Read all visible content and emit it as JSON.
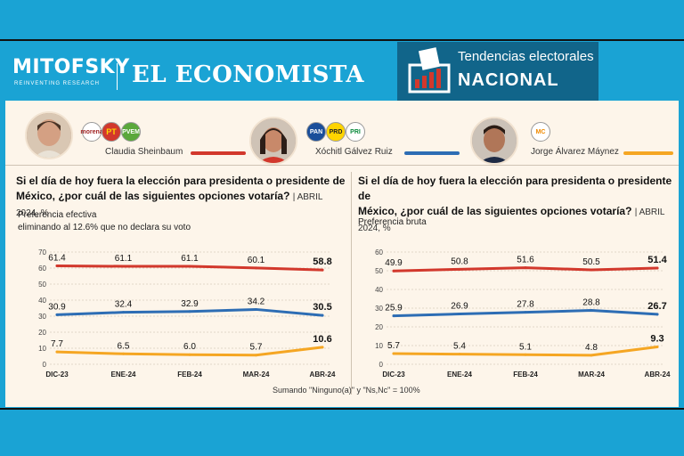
{
  "header": {
    "mitofsky": "MITOFSKY",
    "mitofsky_sub": "REINVENTING RESEARCH",
    "economista": "EL ECONOMISTA",
    "tend_line1": "Tendencias electorales",
    "tend_line2": "NACIONAL"
  },
  "candidates": [
    {
      "name": "Claudia Sheinbaum",
      "parties": [
        "morena",
        "PT",
        "PVEM"
      ],
      "color": "#d2382c"
    },
    {
      "name": "Xóchitl Gálvez Ruiz",
      "parties": [
        "PAN",
        "PRD",
        "PRI"
      ],
      "color": "#2d6db4"
    },
    {
      "name": "Jorge Álvarez Máynez",
      "parties": [
        "MC"
      ],
      "color": "#f5a623"
    }
  ],
  "panels": {
    "left": {
      "question_a": "Si el día de hoy fuera la elección para presidenta o presidente de",
      "question_b": "México, ¿por cuál de las siguientes opciones votaría?",
      "tag": "| ABRIL 2024, %",
      "sub1": "Preferencia efectiva",
      "sub2": "eliminando al 12.6% que no declara su voto"
    },
    "right": {
      "question_a": "Si el día de hoy fuera la elección para presidenta o presidente de",
      "question_b": "México, ¿por cuál de las siguientes opciones votaría?",
      "tag": "| ABRIL 2024, %",
      "sub1": "Preferencia bruta"
    }
  },
  "footnote": "Sumando \"Ninguno(a)\" y \"Ns,Nc\" = 100%",
  "chart_data": [
    {
      "type": "line",
      "title": "Preferencia efectiva",
      "categories": [
        "DIC-23",
        "ENE-24",
        "FEB-24",
        "MAR-24",
        "ABR-24"
      ],
      "ylim": [
        0,
        70
      ],
      "yticks": [
        "0",
        "10",
        "20",
        "30",
        "40",
        "50",
        "60",
        "70"
      ],
      "grid": true,
      "series": [
        {
          "name": "Claudia Sheinbaum",
          "color": "#d2382c",
          "values": [
            61.4,
            61.1,
            61.1,
            60.1,
            58.8
          ],
          "labels": [
            "61.4",
            "61.1",
            "61.1",
            "60.1",
            "58.8"
          ]
        },
        {
          "name": "Xóchitl Gálvez Ruiz",
          "color": "#2d6db4",
          "values": [
            30.9,
            32.4,
            32.9,
            34.2,
            30.5
          ],
          "labels": [
            "30.9",
            "32.4",
            "32.9",
            "34.2",
            "30.5"
          ]
        },
        {
          "name": "Jorge Álvarez Máynez",
          "color": "#f5a623",
          "values": [
            7.7,
            6.5,
            6.0,
            5.7,
            10.6
          ],
          "labels": [
            "7.7",
            "6.5",
            "6.0",
            "5.7",
            "10.6"
          ]
        }
      ]
    },
    {
      "type": "line",
      "title": "Preferencia bruta",
      "categories": [
        "DIC-23",
        "ENE-24",
        "FEB-24",
        "MAR-24",
        "ABR-24"
      ],
      "ylim": [
        0,
        60
      ],
      "yticks": [
        "0",
        "10",
        "20",
        "30",
        "40",
        "50",
        "60"
      ],
      "grid": true,
      "series": [
        {
          "name": "Claudia Sheinbaum",
          "color": "#d2382c",
          "values": [
            49.9,
            50.8,
            51.6,
            50.5,
            51.4
          ],
          "labels": [
            "49.9",
            "50.8",
            "51.6",
            "50.5",
            "51.4"
          ]
        },
        {
          "name": "Xóchitl Gálvez Ruiz",
          "color": "#2d6db4",
          "values": [
            25.9,
            26.9,
            27.8,
            28.8,
            26.7
          ],
          "labels": [
            "25.9",
            "26.9",
            "27.8",
            "28.8",
            "26.7"
          ]
        },
        {
          "name": "Jorge Álvarez Máynez",
          "color": "#f5a623",
          "values": [
            5.7,
            5.4,
            5.1,
            4.8,
            9.3
          ],
          "labels": [
            "5.7",
            "5.4",
            "5.1",
            "4.8",
            "9.3"
          ]
        }
      ]
    }
  ]
}
